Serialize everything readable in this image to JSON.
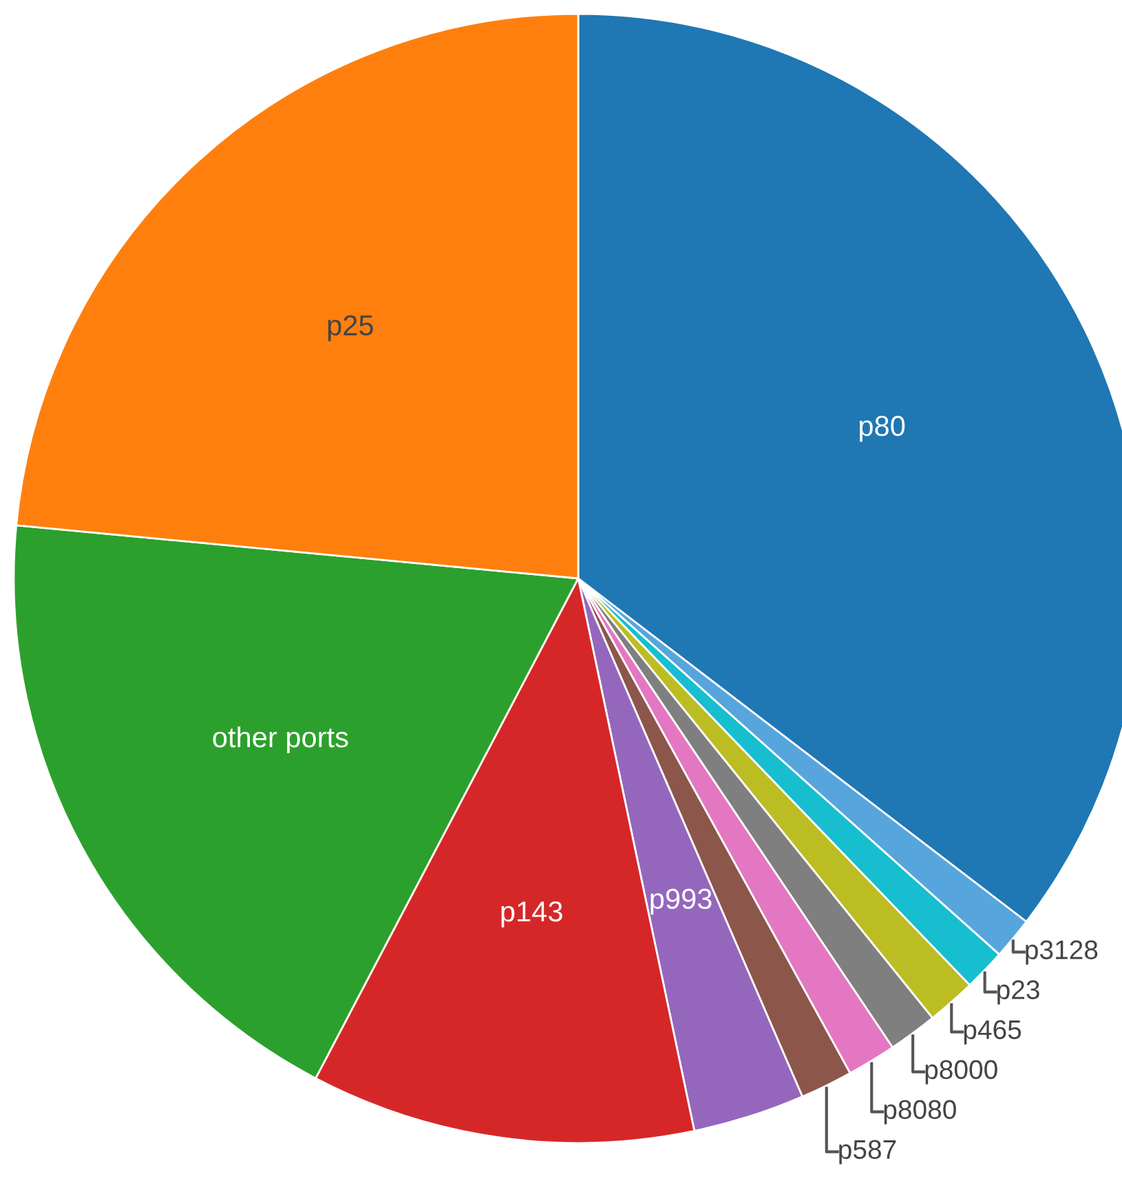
{
  "chart_data": {
    "type": "pie",
    "categories": [
      "p80",
      "p3128",
      "p23",
      "p465",
      "p8000",
      "p8080",
      "p587",
      "p993",
      "p143",
      "other ports",
      "p25"
    ],
    "values": [
      35.4,
      1.2,
      1.2,
      1.4,
      1.4,
      1.4,
      1.5,
      3.2,
      11,
      18.8,
      23.5
    ],
    "colors": [
      "#1f77b4",
      "#57a5dd",
      "#17becf",
      "#bcbd22",
      "#7f7f7f",
      "#e377c2",
      "#8c564b",
      "#9467bd",
      "#d62728",
      "#2ca02c",
      "#ff7f0e"
    ],
    "legend": false
  }
}
